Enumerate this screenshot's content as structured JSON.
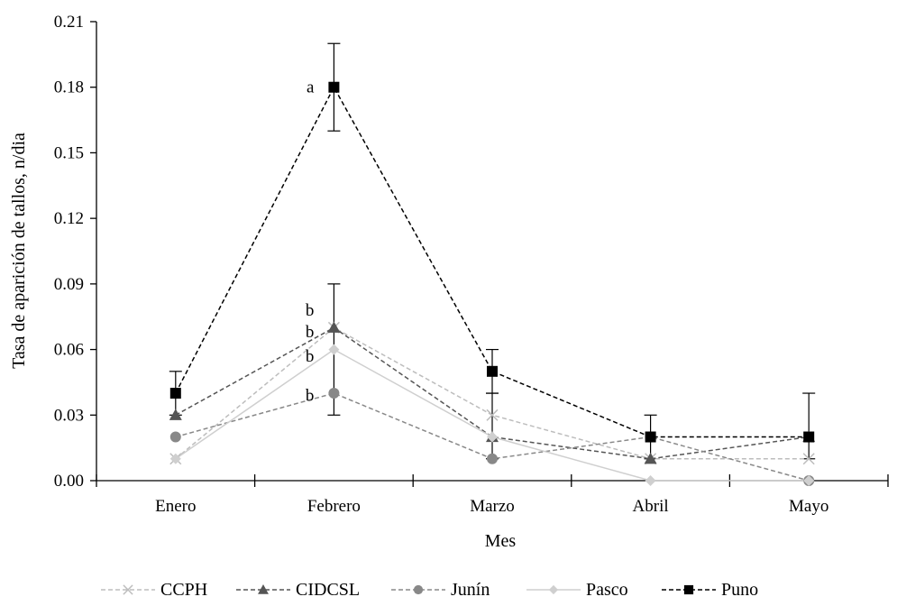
{
  "chart_data": {
    "type": "line",
    "xlabel": "Mes",
    "ylabel": "Tasa de aparición de tallos, n/dia",
    "categories": [
      "Enero",
      "Febrero",
      "Marzo",
      "Abril",
      "Mayo"
    ],
    "ylim": [
      0,
      0.21
    ],
    "yticks": [
      "0.00",
      "0.03",
      "0.06",
      "0.09",
      "0.12",
      "0.15",
      "0.18",
      "0.21"
    ],
    "grid": false,
    "legend_position": "bottom",
    "series": [
      {
        "name": "CCPH",
        "values": [
          0.01,
          0.07,
          0.03,
          0.01,
          0.01
        ],
        "color": "#bdbdbd",
        "dash": "dashed",
        "marker": "x"
      },
      {
        "name": "CIDCSL",
        "values": [
          0.03,
          0.07,
          0.02,
          0.01,
          0.02
        ],
        "color": "#555555",
        "dash": "dashed",
        "marker": "triangle"
      },
      {
        "name": "Junín",
        "values": [
          0.02,
          0.04,
          0.01,
          0.02,
          0.0
        ],
        "color": "#888888",
        "dash": "dashed",
        "marker": "circle"
      },
      {
        "name": "Pasco",
        "values": [
          0.01,
          0.06,
          0.02,
          0.0,
          0.0
        ],
        "color": "#cfcfcf",
        "dash": "solid",
        "marker": "diamond"
      },
      {
        "name": "Puno",
        "values": [
          0.04,
          0.18,
          0.05,
          0.02,
          0.02
        ],
        "color": "#000000",
        "dash": "dashed",
        "marker": "square"
      }
    ],
    "error_bars": [
      {
        "category": "Enero",
        "low": 0.03,
        "high": 0.05
      },
      {
        "category": "Febrero",
        "low": 0.16,
        "high": 0.2
      },
      {
        "category": "Febrero",
        "low": 0.03,
        "high": 0.09
      },
      {
        "category": "Marzo",
        "low": 0.04,
        "high": 0.06
      },
      {
        "category": "Marzo",
        "low": 0.01,
        "high": 0.04
      },
      {
        "category": "Abril",
        "low": 0.01,
        "high": 0.03
      },
      {
        "category": "Mayo",
        "low": 0.01,
        "high": 0.04
      }
    ],
    "annotations": [
      {
        "text": "a",
        "category": "Febrero",
        "y": 0.18
      },
      {
        "text": "b",
        "category": "Febrero",
        "y": 0.078
      },
      {
        "text": "b",
        "category": "Febrero",
        "y": 0.068
      },
      {
        "text": "b",
        "category": "Febrero",
        "y": 0.057
      },
      {
        "text": "b",
        "category": "Febrero",
        "y": 0.039
      }
    ]
  }
}
